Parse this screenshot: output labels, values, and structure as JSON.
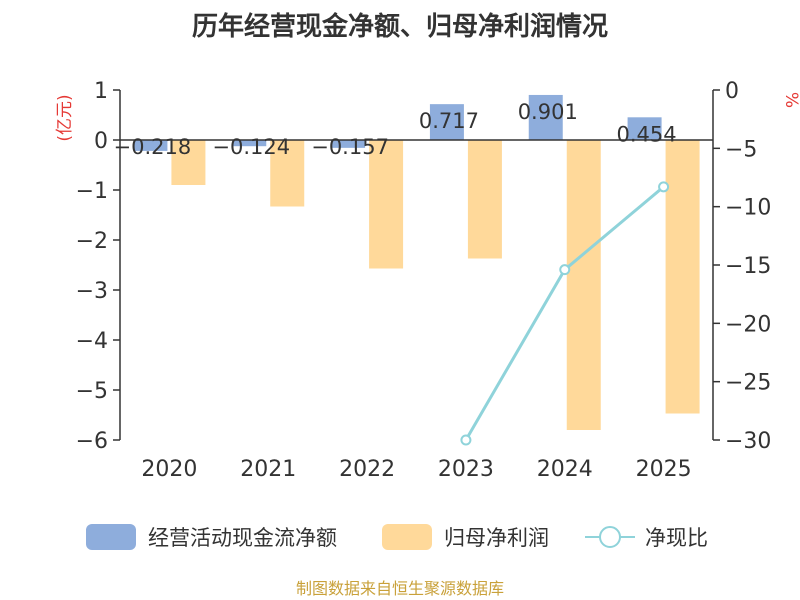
{
  "chart_data": {
    "type": "bar+line",
    "title": "历年经营现金净额、归母净利润情况",
    "categories": [
      "2020",
      "2021",
      "2022",
      "2023",
      "2024",
      "2025"
    ],
    "y_left_label": "(亿元)",
    "y_right_label": "%",
    "y_left_range": [
      -6,
      1
    ],
    "y_right_range": [
      -30,
      0
    ],
    "y_left_ticks": [
      "1",
      "0",
      "−1",
      "−2",
      "−3",
      "−4",
      "−5",
      "−6"
    ],
    "y_right_ticks": [
      "0",
      "−5",
      "−10",
      "−15",
      "−20",
      "−25",
      "−30"
    ],
    "series": [
      {
        "name": "经营活动现金流净额",
        "type": "bar",
        "axis": "left",
        "color": "#8eaddc",
        "values": [
          -0.218,
          -0.124,
          -0.157,
          0.717,
          0.901,
          0.454
        ],
        "labels": [
          "−0.218",
          "−0.124",
          "−0.157",
          "0.717",
          "0.901",
          "0.454"
        ]
      },
      {
        "name": "归母净利润",
        "type": "bar",
        "axis": "left",
        "color": "#ffd99a",
        "values": [
          -0.9,
          -1.33,
          -2.57,
          -2.37,
          -5.8,
          -5.47
        ]
      },
      {
        "name": "净现比",
        "type": "line",
        "axis": "right",
        "color": "#8fd3da",
        "x": [
          "2023",
          "2024",
          "2025"
        ],
        "values": [
          -30.0,
          -15.4,
          -8.3
        ]
      }
    ],
    "legend_position": "bottom",
    "grid": false
  },
  "source": "制图数据来自恒生聚源数据库",
  "colors": {
    "axis": "#333333",
    "axis_label": "#e53935",
    "source": "#c9a13a"
  }
}
